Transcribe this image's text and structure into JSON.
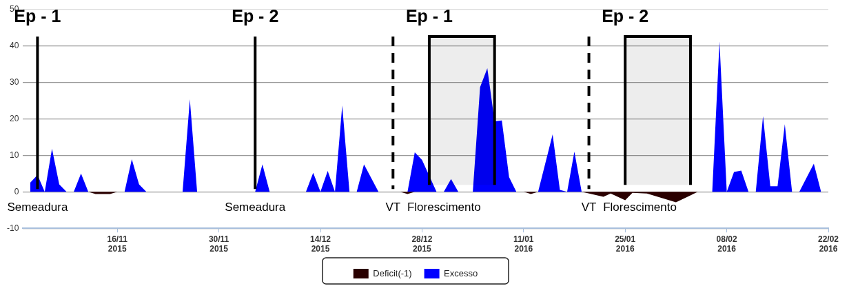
{
  "chart_data": {
    "type": "area",
    "xlim": [
      "2015-11-03",
      "2016-02-22"
    ],
    "xticks": [
      {
        "value": "2015-11-16",
        "label": "16/11\n2015"
      },
      {
        "value": "2015-11-30",
        "label": "30/11\n2015"
      },
      {
        "value": "2015-12-14",
        "label": "14/12\n2015"
      },
      {
        "value": "2015-12-28",
        "label": "28/12\n2015"
      },
      {
        "value": "2016-01-11",
        "label": "11/01\n2016"
      },
      {
        "value": "2016-01-25",
        "label": "25/01\n2016"
      },
      {
        "value": "2016-02-08",
        "label": "08/02\n2016"
      },
      {
        "value": "2016-02-22",
        "label": "22/02\n2016"
      }
    ],
    "ylim": [
      -10,
      50
    ],
    "yticks": [
      -10,
      0,
      10,
      20,
      30,
      40,
      50
    ],
    "grid": "y",
    "legend": "bottom",
    "series": [
      {
        "name": "Deficit(-1)",
        "color": "#2a0000",
        "x": [
          "2015-11-04",
          "2015-11-12",
          "2015-11-13",
          "2015-11-15",
          "2015-11-16",
          "2015-12-25",
          "2015-12-26",
          "2015-12-27",
          "2016-01-11",
          "2016-01-12",
          "2016-01-13",
          "2016-01-19",
          "2016-01-22",
          "2016-01-23",
          "2016-01-25",
          "2016-01-26",
          "2016-01-28",
          "2016-02-01",
          "2016-02-03",
          "2016-02-04",
          "2016-02-21"
        ],
        "values": [
          0,
          0,
          -0.6,
          -0.6,
          0,
          0,
          -0.6,
          0,
          0,
          -0.6,
          0,
          0,
          -1.4,
          -0.5,
          -2.3,
          -0.3,
          -0.5,
          -2.9,
          -1,
          0,
          0
        ]
      },
      {
        "name": "Excesso",
        "color": "#0000ff",
        "x": [
          "2015-11-04",
          "2015-11-05",
          "2015-11-06",
          "2015-11-07",
          "2015-11-08",
          "2015-11-09",
          "2015-11-10",
          "2015-11-11",
          "2015-11-12",
          "2015-11-17",
          "2015-11-18",
          "2015-11-19",
          "2015-11-20",
          "2015-11-25",
          "2015-11-26",
          "2015-11-27",
          "2015-12-05",
          "2015-12-06",
          "2015-12-07",
          "2015-12-12",
          "2015-12-13",
          "2015-12-14",
          "2015-12-15",
          "2015-12-16",
          "2015-12-17",
          "2015-12-18",
          "2015-12-19",
          "2015-12-20",
          "2015-12-22",
          "2015-12-26",
          "2015-12-27",
          "2015-12-28",
          "2015-12-30",
          "2015-12-31",
          "2016-01-01",
          "2016-01-02",
          "2016-01-04",
          "2016-01-05",
          "2016-01-06",
          "2016-01-07",
          "2016-01-08",
          "2016-01-09",
          "2016-01-10",
          "2016-01-13",
          "2016-01-15",
          "2016-01-16",
          "2016-01-17",
          "2016-01-18",
          "2016-01-19",
          "2016-02-06",
          "2016-02-07",
          "2016-02-08",
          "2016-02-09",
          "2016-02-10",
          "2016-02-11",
          "2016-02-12",
          "2016-02-13",
          "2016-02-14",
          "2016-02-15",
          "2016-02-16",
          "2016-02-17",
          "2016-02-18",
          "2016-02-20",
          "2016-02-21"
        ],
        "values": [
          2.5,
          4.6,
          0,
          11.8,
          2,
          0,
          0,
          5,
          0,
          0,
          8.9,
          2,
          0,
          0,
          25.3,
          0,
          0,
          7.5,
          0,
          0,
          5.2,
          0,
          5.7,
          0,
          23.6,
          0,
          0,
          7.5,
          0,
          0,
          10.8,
          8.7,
          0,
          0,
          3.5,
          0,
          0,
          28.6,
          33.8,
          19.3,
          19.5,
          4,
          0,
          0,
          15.7,
          0.5,
          0,
          11,
          0,
          0,
          41.1,
          0,
          5.4,
          5.8,
          0,
          0,
          20.7,
          1.5,
          1.5,
          18.5,
          0,
          0,
          7.7,
          0
        ]
      }
    ],
    "ref_lines": [
      {
        "axis": "x",
        "value": "2015-11-05",
        "label": "Semeadura",
        "line_style": "solid",
        "color": "#000000"
      },
      {
        "axis": "x",
        "value": "2015-12-05",
        "label": "Semeadura",
        "line_style": "solid",
        "color": "#000000"
      },
      {
        "axis": "x",
        "value": "2015-12-24",
        "label": "VT",
        "line_style": "dashed",
        "color": "#000000"
      },
      {
        "axis": "x",
        "value": "2016-01-20",
        "label": "VT",
        "line_style": "dashed",
        "color": "#000000"
      }
    ],
    "bands": [
      {
        "axis": "x",
        "from": "2015-12-29",
        "to": "2016-01-07",
        "label": "Florescimento",
        "color": "#000000"
      },
      {
        "axis": "x",
        "from": "2016-01-25",
        "to": "2016-02-03",
        "label": "Florescimento",
        "color": "#000000"
      }
    ],
    "annotations": [
      "Ep - 1",
      "Ep - 2",
      "Ep - 1",
      "Ep - 2"
    ]
  }
}
